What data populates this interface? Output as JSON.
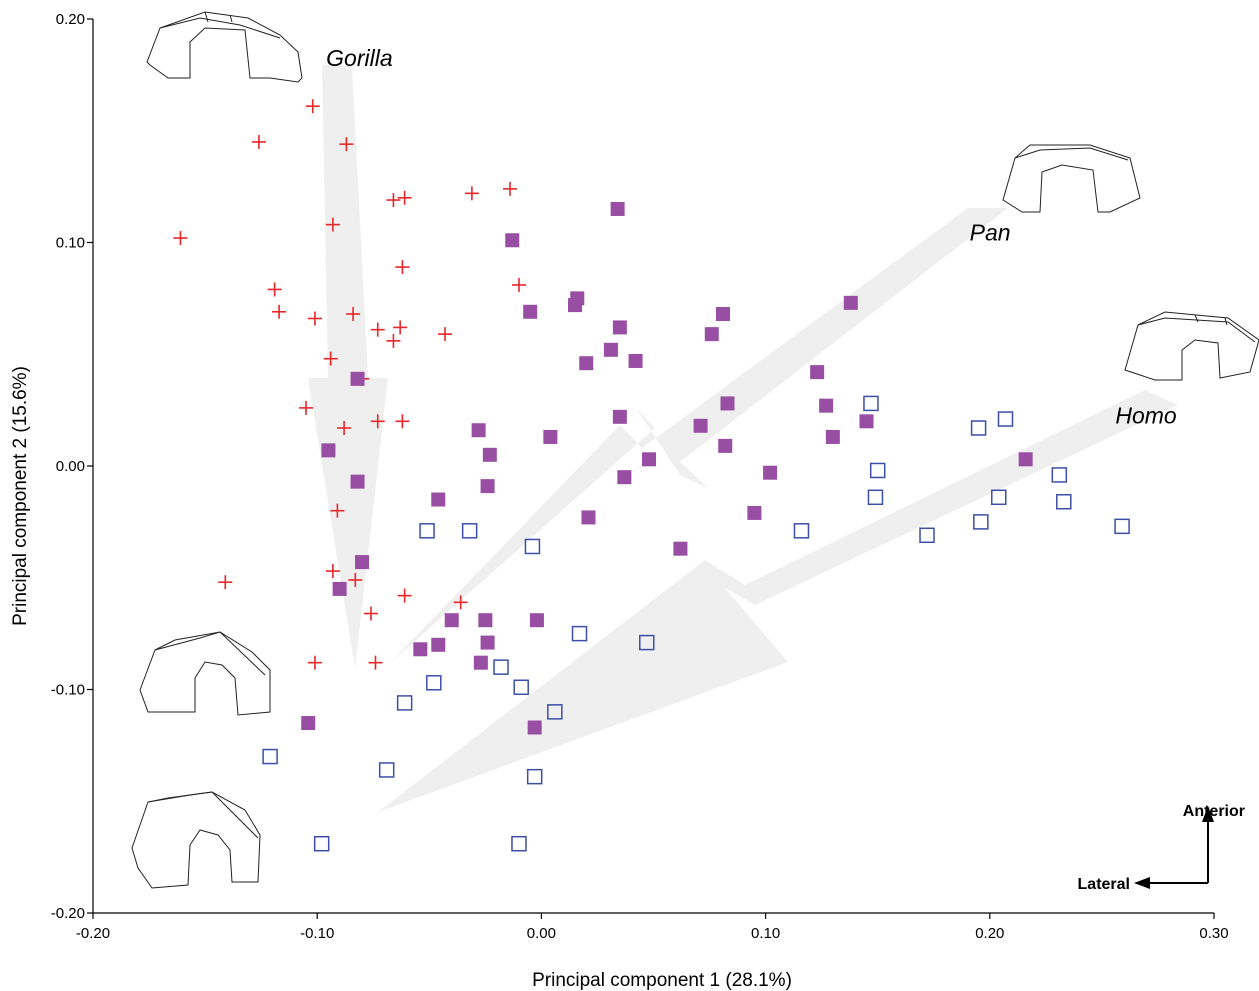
{
  "colors": {
    "gorilla": "#e8262a",
    "pan": "#984ea3",
    "homo": "#3b4fa8",
    "arrow": "#efefef",
    "axis": "#000000"
  },
  "chart_data": {
    "type": "scatter",
    "title": "",
    "xlabel": "Principal component 1 (28.1%)",
    "ylabel": "Principal component 2 (15.6%)",
    "xlim": [
      -0.2,
      0.3
    ],
    "ylim": [
      -0.2,
      0.2
    ],
    "xticks": [
      {
        "value": -0.2,
        "label": "-0.20"
      },
      {
        "value": -0.1,
        "label": "-0.10"
      },
      {
        "value": 0.0,
        "label": "0.00"
      },
      {
        "value": 0.1,
        "label": "0.10"
      },
      {
        "value": 0.2,
        "label": "0.20"
      },
      {
        "value": 0.3,
        "label": "0.30"
      }
    ],
    "yticks": [
      {
        "value": 0.2,
        "label": "0.20"
      },
      {
        "value": 0.1,
        "label": "0.10"
      },
      {
        "value": 0.0,
        "label": "0.00"
      },
      {
        "value": -0.1,
        "label": "-0.10"
      },
      {
        "value": -0.2,
        "label": "-0.20"
      }
    ],
    "grid": false,
    "series": [
      {
        "name": "Gorilla",
        "marker": "plus",
        "color": "#e8262a",
        "points": [
          [
            -0.102,
            0.161
          ],
          [
            -0.126,
            0.145
          ],
          [
            -0.087,
            0.144
          ],
          [
            -0.161,
            0.102
          ],
          [
            -0.066,
            0.119
          ],
          [
            -0.061,
            0.12
          ],
          [
            -0.031,
            0.122
          ],
          [
            -0.014,
            0.124
          ],
          [
            -0.093,
            0.108
          ],
          [
            -0.062,
            0.089
          ],
          [
            -0.119,
            0.079
          ],
          [
            -0.117,
            0.069
          ],
          [
            -0.101,
            0.066
          ],
          [
            -0.084,
            0.068
          ],
          [
            -0.01,
            0.081
          ],
          [
            -0.073,
            0.061
          ],
          [
            -0.063,
            0.062
          ],
          [
            -0.066,
            0.056
          ],
          [
            -0.043,
            0.059
          ],
          [
            -0.094,
            0.048
          ],
          [
            -0.08,
            0.039
          ],
          [
            -0.105,
            0.026
          ],
          [
            -0.088,
            0.017
          ],
          [
            -0.073,
            0.02
          ],
          [
            -0.062,
            0.02
          ],
          [
            -0.091,
            -0.02
          ],
          [
            -0.093,
            -0.047
          ],
          [
            -0.083,
            -0.051
          ],
          [
            -0.141,
            -0.052
          ],
          [
            -0.061,
            -0.058
          ],
          [
            -0.036,
            -0.061
          ],
          [
            -0.076,
            -0.066
          ],
          [
            -0.101,
            -0.088
          ],
          [
            -0.074,
            -0.088
          ]
        ]
      },
      {
        "name": "Pan",
        "marker": "filled-square",
        "color": "#984ea3",
        "points": [
          [
            0.034,
            0.115
          ],
          [
            -0.013,
            0.101
          ],
          [
            0.016,
            0.075
          ],
          [
            0.015,
            0.072
          ],
          [
            -0.005,
            0.069
          ],
          [
            0.081,
            0.068
          ],
          [
            0.138,
            0.073
          ],
          [
            0.035,
            0.062
          ],
          [
            0.076,
            0.059
          ],
          [
            0.031,
            0.052
          ],
          [
            0.02,
            0.046
          ],
          [
            0.042,
            0.047
          ],
          [
            0.123,
            0.042
          ],
          [
            -0.082,
            0.039
          ],
          [
            0.083,
            0.028
          ],
          [
            0.127,
            0.027
          ],
          [
            0.035,
            0.022
          ],
          [
            0.071,
            0.018
          ],
          [
            0.145,
            0.02
          ],
          [
            -0.028,
            0.016
          ],
          [
            0.13,
            0.013
          ],
          [
            0.004,
            0.013
          ],
          [
            -0.095,
            0.007
          ],
          [
            -0.023,
            0.005
          ],
          [
            0.082,
            0.009
          ],
          [
            0.048,
            0.003
          ],
          [
            0.216,
            0.003
          ],
          [
            0.102,
            -0.003
          ],
          [
            0.037,
            -0.005
          ],
          [
            -0.082,
            -0.007
          ],
          [
            -0.024,
            -0.009
          ],
          [
            -0.046,
            -0.015
          ],
          [
            0.095,
            -0.021
          ],
          [
            0.021,
            -0.023
          ],
          [
            0.062,
            -0.037
          ],
          [
            -0.08,
            -0.043
          ],
          [
            -0.09,
            -0.055
          ],
          [
            -0.04,
            -0.069
          ],
          [
            -0.025,
            -0.069
          ],
          [
            -0.002,
            -0.069
          ],
          [
            -0.024,
            -0.079
          ],
          [
            -0.054,
            -0.082
          ],
          [
            -0.046,
            -0.08
          ],
          [
            -0.027,
            -0.088
          ],
          [
            -0.104,
            -0.115
          ],
          [
            -0.003,
            -0.117
          ]
        ]
      },
      {
        "name": "Homo",
        "marker": "open-square",
        "color": "#3b4fa8",
        "points": [
          [
            0.147,
            0.028
          ],
          [
            0.207,
            0.021
          ],
          [
            0.195,
            0.017
          ],
          [
            0.15,
            -0.002
          ],
          [
            0.231,
            -0.004
          ],
          [
            0.149,
            -0.014
          ],
          [
            0.204,
            -0.014
          ],
          [
            0.233,
            -0.016
          ],
          [
            0.196,
            -0.025
          ],
          [
            0.259,
            -0.027
          ],
          [
            0.116,
            -0.029
          ],
          [
            0.172,
            -0.031
          ],
          [
            -0.051,
            -0.029
          ],
          [
            -0.032,
            -0.029
          ],
          [
            -0.004,
            -0.036
          ],
          [
            0.017,
            -0.075
          ],
          [
            0.047,
            -0.079
          ],
          [
            -0.018,
            -0.09
          ],
          [
            -0.048,
            -0.097
          ],
          [
            -0.009,
            -0.099
          ],
          [
            -0.061,
            -0.106
          ],
          [
            0.006,
            -0.11
          ],
          [
            -0.121,
            -0.13
          ],
          [
            -0.069,
            -0.136
          ],
          [
            -0.003,
            -0.139
          ],
          [
            -0.098,
            -0.169
          ],
          [
            -0.01,
            -0.169
          ]
        ]
      }
    ],
    "annotations": [
      {
        "text": "Gorilla",
        "x": -0.096,
        "y": 0.179
      },
      {
        "text": "Pan",
        "x": 0.191,
        "y": 0.101
      },
      {
        "text": "Homo",
        "x": 0.256,
        "y": 0.019
      }
    ],
    "orientation": {
      "anterior": "Anterior",
      "lateral": "Lateral"
    }
  }
}
